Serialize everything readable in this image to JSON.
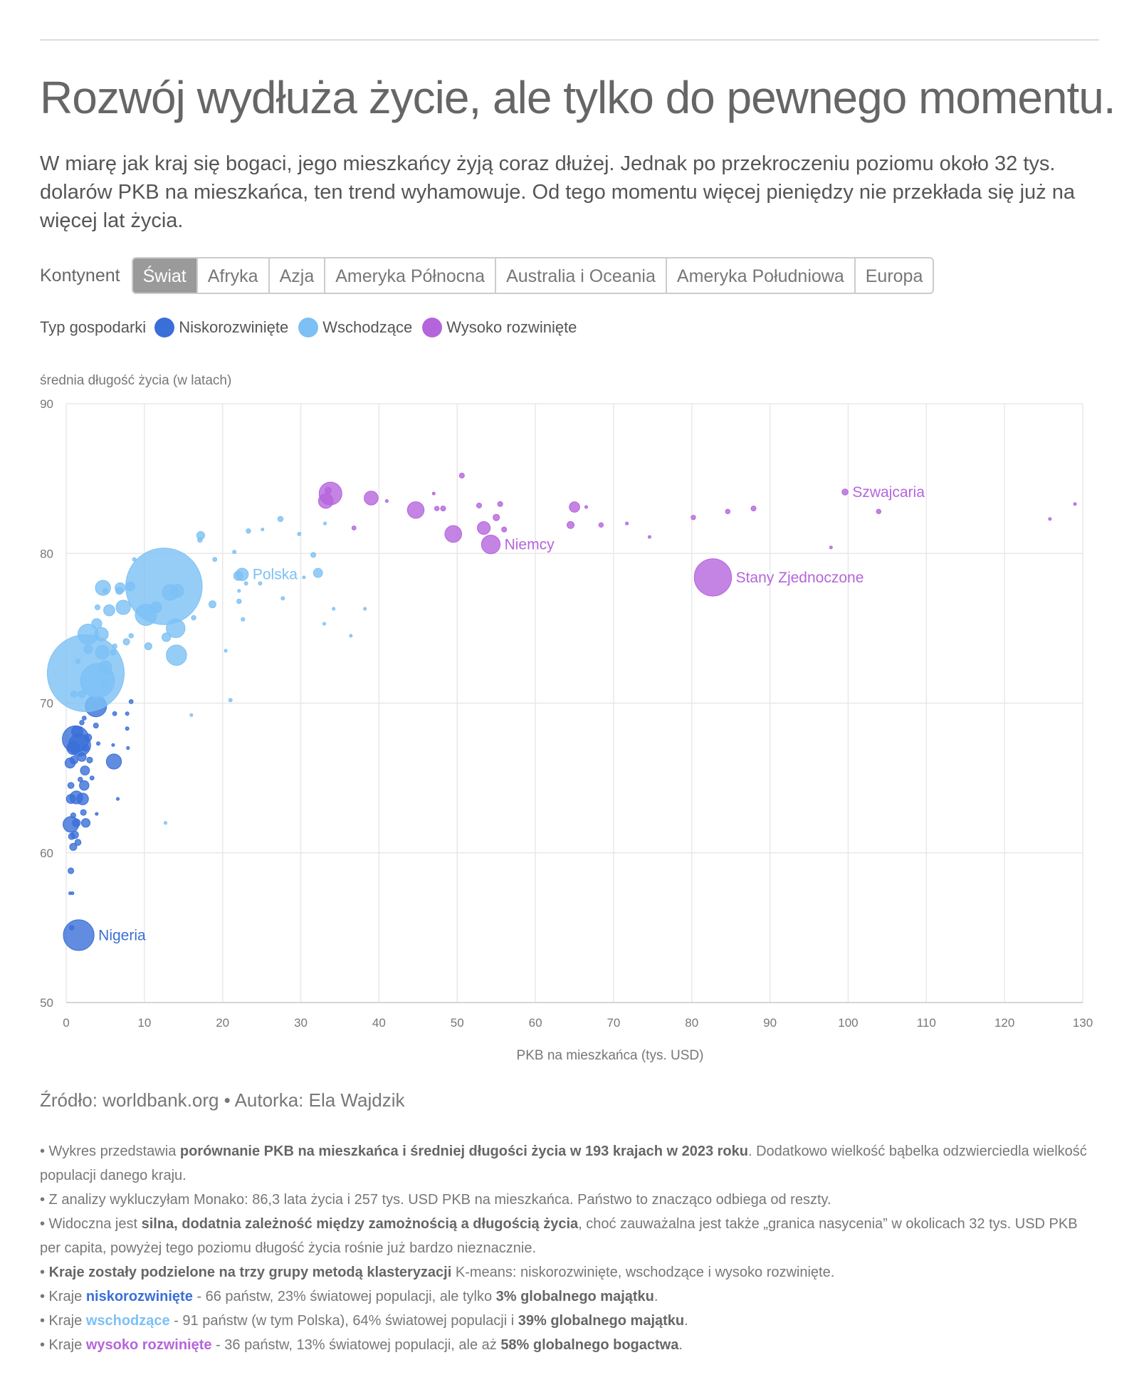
{
  "title": "Rozwój wydłuża życie, ale tylko do pewnego momentu.",
  "subtitle": "W miarę jak kraj się bogaci, jego mieszkańcy żyją coraz dłużej. Jednak po przekroczeniu poziomu około 32 tys. dolarów PKB na mieszkańca, ten trend wyhamowuje. Od tego momentu więcej pieniędzy nie przekłada się już na więcej lat życia.",
  "filter": {
    "label": "Kontynent",
    "tabs": [
      "Świat",
      "Afryka",
      "Azja",
      "Ameryka Północna",
      "Australia i Oceania",
      "Ameryka Południowa",
      "Europa"
    ],
    "active": "Świat"
  },
  "legend": {
    "title": "Typ gospodarki",
    "items": [
      {
        "label": "Niskorozwinięte",
        "color": "#3a6fd8"
      },
      {
        "label": "Wschodzące",
        "color": "#7cc0f5"
      },
      {
        "label": "Wysoko rozwinięte",
        "color": "#b565dc"
      }
    ]
  },
  "chart_data": {
    "type": "scatter",
    "title": "",
    "xlabel": "PKB na mieszkańca (tys. USD)",
    "ylabel": "średnia długość życia (w latach)",
    "xlim": [
      0,
      130
    ],
    "ylim": [
      50,
      90
    ],
    "xticks": [
      0,
      10,
      20,
      30,
      40,
      50,
      60,
      70,
      80,
      90,
      100,
      110,
      120,
      130
    ],
    "yticks": [
      50,
      60,
      70,
      80,
      90
    ],
    "grid": true,
    "bubble_size": "population",
    "series": [
      {
        "name": "Niskorozwinięte",
        "color": "#3a6fd8",
        "points": [
          [
            1.6,
            54.5,
            228,
            "Nigeria"
          ],
          [
            0.7,
            55.0,
            5
          ],
          [
            0.5,
            57.3,
            2
          ],
          [
            0.8,
            57.3,
            2
          ],
          [
            0.6,
            58.8,
            8
          ],
          [
            0.9,
            60.4,
            12
          ],
          [
            1.5,
            60.7,
            9
          ],
          [
            0.7,
            61.1,
            10
          ],
          [
            1.1,
            61.2,
            13
          ],
          [
            0.6,
            61.9,
            60
          ],
          [
            1.3,
            62.0,
            15
          ],
          [
            2.5,
            62.0,
            18
          ],
          [
            0.9,
            62.5,
            6
          ],
          [
            2.2,
            62.7,
            8
          ],
          [
            3.9,
            62.6,
            2
          ],
          [
            0.6,
            63.6,
            20
          ],
          [
            1.3,
            63.7,
            40
          ],
          [
            2.1,
            63.6,
            33
          ],
          [
            6.6,
            63.6,
            2
          ],
          [
            0.6,
            64.5,
            9
          ],
          [
            2.3,
            64.5,
            22
          ],
          [
            1.8,
            64.9,
            5
          ],
          [
            3.3,
            65.0,
            4
          ],
          [
            2.4,
            65.5,
            20
          ],
          [
            0.5,
            66.0,
            25
          ],
          [
            1.0,
            66.2,
            15
          ],
          [
            2.0,
            66.4,
            18
          ],
          [
            3.0,
            66.2,
            8
          ],
          [
            6.1,
            66.1,
            55
          ],
          [
            0.9,
            67.0,
            40
          ],
          [
            1.7,
            67.2,
            120
          ],
          [
            2.5,
            67.0,
            10
          ],
          [
            1.2,
            67.6,
            170
          ],
          [
            2.8,
            67.7,
            12
          ],
          [
            4.1,
            67.3,
            3
          ],
          [
            6.0,
            67.2,
            2
          ],
          [
            7.9,
            67.0,
            2
          ],
          [
            1.4,
            68.1,
            30
          ],
          [
            2.0,
            68.7,
            5
          ],
          [
            3.8,
            68.5,
            6
          ],
          [
            7.8,
            68.3,
            3
          ],
          [
            2.3,
            69.0,
            4
          ],
          [
            3.8,
            69.8,
            110
          ],
          [
            6.2,
            69.3,
            4
          ],
          [
            7.8,
            69.3,
            3
          ],
          [
            8.3,
            70.1,
            4
          ]
        ]
      },
      {
        "name": "Wschodzące",
        "color": "#7cc0f5",
        "points": [
          [
            2.5,
            72.0,
            1428
          ],
          [
            4.0,
            71.5,
            280
          ],
          [
            1.0,
            70.6,
            10
          ],
          [
            2.0,
            70.6,
            12
          ],
          [
            5.0,
            71.3,
            8
          ],
          [
            5.0,
            72.4,
            40
          ],
          [
            2.8,
            73.6,
            18
          ],
          [
            4.6,
            73.4,
            45
          ],
          [
            6.0,
            73.4,
            8
          ],
          [
            1.5,
            72.8,
            5
          ],
          [
            2.8,
            74.6,
            100
          ],
          [
            4.5,
            74.6,
            45
          ],
          [
            3.9,
            75.3,
            25
          ],
          [
            6.2,
            73.8,
            5
          ],
          [
            7.7,
            74.1,
            10
          ],
          [
            8.3,
            74.5,
            5
          ],
          [
            10.5,
            73.8,
            12
          ],
          [
            12.8,
            74.4,
            18
          ],
          [
            14.1,
            73.2,
            100
          ],
          [
            14.0,
            75.0,
            85
          ],
          [
            10.2,
            75.9,
            110
          ],
          [
            11.5,
            76.4,
            30
          ],
          [
            12.5,
            77.8,
            1411
          ],
          [
            13.3,
            77.4,
            60
          ],
          [
            14.2,
            77.5,
            40
          ],
          [
            16.3,
            75.7,
            5
          ],
          [
            18.7,
            76.6,
            12
          ],
          [
            4.0,
            76.4,
            6
          ],
          [
            5.5,
            76.2,
            30
          ],
          [
            7.3,
            76.4,
            50
          ],
          [
            5.0,
            77.5,
            6
          ],
          [
            6.8,
            77.5,
            12
          ],
          [
            4.7,
            77.7,
            55
          ],
          [
            6.9,
            77.7,
            25
          ],
          [
            8.2,
            77.8,
            20
          ],
          [
            8.7,
            79.6,
            3
          ],
          [
            17.1,
            80.9,
            5
          ],
          [
            17.2,
            81.2,
            15
          ],
          [
            19.0,
            79.6,
            4
          ],
          [
            21.5,
            80.1,
            3
          ],
          [
            22.0,
            78.5,
            20
          ],
          [
            22.1,
            77.5,
            2
          ],
          [
            22.1,
            76.8,
            5
          ],
          [
            22.6,
            75.6,
            3
          ],
          [
            23.0,
            78.0,
            3
          ],
          [
            22.5,
            78.6,
            37,
            "Polska"
          ],
          [
            24.8,
            78.0,
            3
          ],
          [
            23.3,
            81.5,
            5
          ],
          [
            25.1,
            81.6,
            2
          ],
          [
            27.4,
            82.3,
            7
          ],
          [
            29.8,
            81.3,
            3
          ],
          [
            30.4,
            78.4,
            2
          ],
          [
            31.6,
            79.9,
            6
          ],
          [
            32.2,
            78.7,
            20
          ],
          [
            33.1,
            82.0,
            2
          ],
          [
            27.7,
            77.0,
            3
          ],
          [
            20.4,
            73.5,
            2
          ],
          [
            21.0,
            70.2,
            3
          ],
          [
            16.0,
            69.2,
            2
          ],
          [
            12.7,
            62.0,
            2
          ],
          [
            36.4,
            74.5,
            2
          ],
          [
            38.2,
            76.3,
            2
          ],
          [
            34.2,
            76.3,
            2
          ],
          [
            33.0,
            75.3,
            2
          ]
        ]
      },
      {
        "name": "Wysoko rozwinięte",
        "color": "#b565dc",
        "points": [
          [
            82.7,
            78.4,
            335,
            "Stany Zjednoczone"
          ],
          [
            54.3,
            80.6,
            84,
            "Niemcy"
          ],
          [
            99.6,
            84.1,
            9,
            "Szwajcaria"
          ],
          [
            33.8,
            84.0,
            125
          ],
          [
            33.2,
            83.5,
            52
          ],
          [
            33.5,
            84.2,
            10
          ],
          [
            39.0,
            83.7,
            47
          ],
          [
            44.7,
            82.9,
            67
          ],
          [
            49.5,
            81.3,
            68
          ],
          [
            53.4,
            81.7,
            40
          ],
          [
            50.6,
            85.2,
            6
          ],
          [
            47.4,
            83.0,
            5
          ],
          [
            48.2,
            83.0,
            6
          ],
          [
            52.8,
            83.2,
            6
          ],
          [
            55.5,
            83.3,
            6
          ],
          [
            55.0,
            82.4,
            10
          ],
          [
            56.0,
            81.6,
            6
          ],
          [
            65.0,
            83.1,
            26
          ],
          [
            64.5,
            81.9,
            12
          ],
          [
            68.4,
            81.9,
            5
          ],
          [
            66.5,
            83.1,
            2
          ],
          [
            71.7,
            82.0,
            2
          ],
          [
            74.6,
            81.1,
            1
          ],
          [
            80.2,
            82.4,
            5
          ],
          [
            84.6,
            82.8,
            5
          ],
          [
            87.9,
            83.0,
            6
          ],
          [
            97.8,
            80.4,
            1
          ],
          [
            103.9,
            82.8,
            5
          ],
          [
            125.8,
            82.3,
            1
          ],
          [
            129.0,
            83.3,
            1
          ],
          [
            36.8,
            81.7,
            4
          ],
          [
            41.0,
            83.5,
            2
          ],
          [
            47.0,
            84.0,
            1
          ]
        ]
      }
    ],
    "annotations": [
      "Nigeria",
      "Polska",
      "Niemcy",
      "Szwajcaria",
      "Stany Zjednoczone"
    ]
  },
  "source": "Źródło: worldbank.org • Autorka: Ela Wajdzik",
  "notes": [
    {
      "parts": [
        {
          "t": "• Wykres przedstawia "
        },
        {
          "t": "porównanie PKB na mieszkańca i średniej długości życia w 193 krajach w 2023 roku",
          "b": true
        },
        {
          "t": ". Dodatkowo wielkość bąbelka odzwierciedla wielkość populacji danego kraju."
        }
      ]
    },
    {
      "parts": [
        {
          "t": "• Z analizy wykluczyłam Monako: 86,3 lata życia i 257 tys. USD PKB na mieszkańca. Państwo to znacząco odbiega od reszty."
        }
      ]
    },
    {
      "parts": [
        {
          "t": "• Widoczna jest "
        },
        {
          "t": "silna, dodatnia zależność między zamożnością a długością życia",
          "b": true
        },
        {
          "t": ", choć zauważalna jest także „granica nasycenia” w okolicach 32 tys. USD PKB per capita, powyżej tego poziomu długość życia rośnie już bardzo nieznacznie."
        }
      ]
    },
    {
      "parts": [
        {
          "t": "• "
        },
        {
          "t": "Kraje zostały podzielone na trzy grupy metodą klasteryzacji",
          "b": true
        },
        {
          "t": " K-means: niskorozwinięte, wschodzące i wysoko rozwinięte."
        }
      ]
    },
    {
      "parts": [
        {
          "t": "• Kraje  "
        },
        {
          "t": "niskorozwinięte",
          "c": "c-low"
        },
        {
          "t": "  - 66 państw, 23% światowej populacji, ale tylko "
        },
        {
          "t": "3% globalnego majątku",
          "b": true
        },
        {
          "t": "."
        }
      ]
    },
    {
      "parts": [
        {
          "t": "• Kraje  "
        },
        {
          "t": "wschodzące",
          "c": "c-em"
        },
        {
          "t": "  - 91 państw (w tym Polska), 64% światowej populacji i "
        },
        {
          "t": "39% globalnego majątku",
          "b": true
        },
        {
          "t": "."
        }
      ]
    },
    {
      "parts": [
        {
          "t": "• Kraje  "
        },
        {
          "t": "wysoko rozwinięte",
          "c": "c-hi"
        },
        {
          "t": "  - 36 państw, 13% światowej populacji, ale aż "
        },
        {
          "t": "58% globalnego bogactwa",
          "b": true
        },
        {
          "t": "."
        }
      ]
    }
  ]
}
